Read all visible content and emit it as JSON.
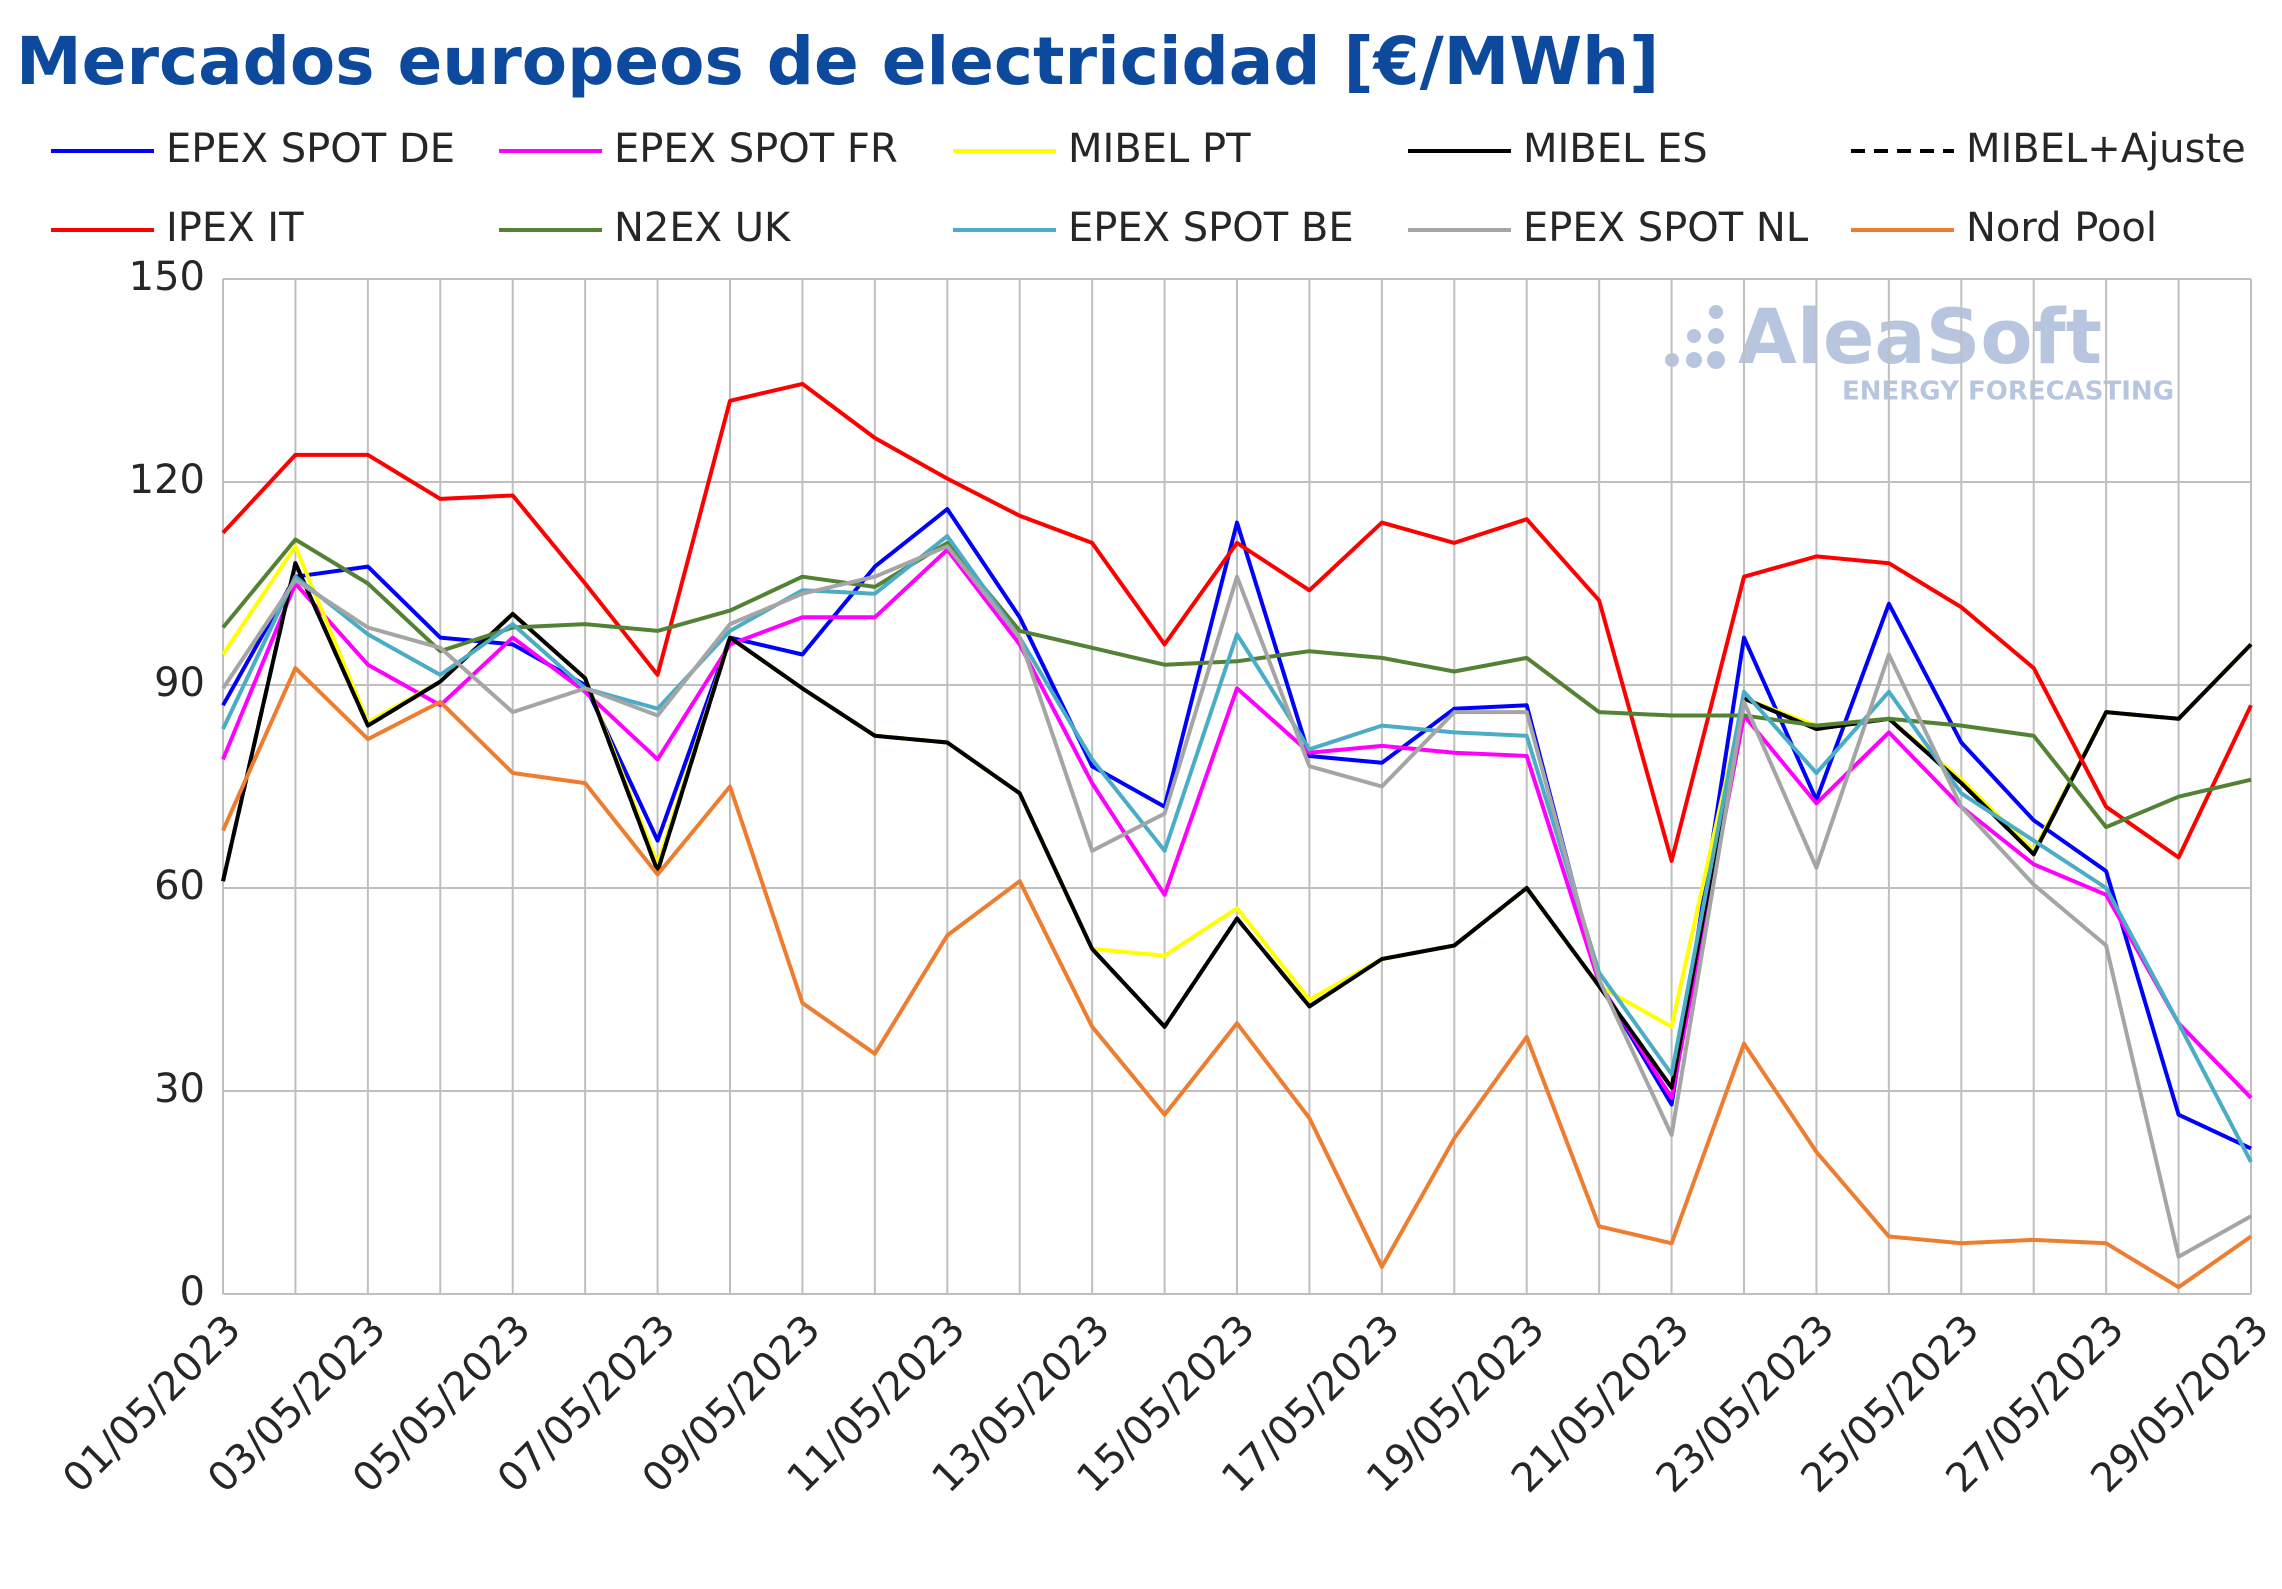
{
  "chart_data": {
    "type": "line",
    "title": "Mercados europeos de electricidad [€/MWh]",
    "watermark": {
      "brand": "AleaSoft",
      "tagline": "ENERGY FORECASTING"
    },
    "categories": [
      "01/05/2023",
      null,
      "03/05/2023",
      null,
      "05/05/2023",
      null,
      "07/05/2023",
      null,
      "09/05/2023",
      null,
      "11/05/2023",
      null,
      "13/05/2023",
      null,
      "15/05/2023",
      null,
      "17/05/2023",
      null,
      "19/05/2023",
      null,
      "21/05/2023",
      null,
      "23/05/2023",
      null,
      "25/05/2023",
      null,
      "27/05/2023",
      null,
      "29/05/2023"
    ],
    "ylim": [
      0,
      150
    ],
    "yticks": [
      0,
      30,
      60,
      90,
      120,
      150
    ],
    "grid": true,
    "series": [
      {
        "name": "EPEX SPOT DE",
        "color": "#0000ff",
        "values": [
          87,
          106,
          107.5,
          97,
          96,
          90,
          67,
          97,
          94.5,
          107.5,
          116,
          100,
          78,
          72,
          114,
          79.5,
          78.5,
          86.5,
          87,
          46,
          28,
          97,
          73,
          102,
          81.5,
          70,
          62.5,
          26.5,
          21.5
        ]
      },
      {
        "name": "EPEX SPOT FR",
        "color": "#ff00ff",
        "values": [
          79,
          105,
          93,
          87,
          97,
          89,
          79,
          96,
          100,
          100,
          110,
          96,
          75.5,
          59,
          89.5,
          80,
          81,
          80,
          79.5,
          46,
          29,
          85.5,
          72.5,
          83,
          72,
          63.5,
          59,
          40,
          29
        ]
      },
      {
        "name": "MIBEL PT",
        "color": "#ffff00",
        "values": [
          94.5,
          110.5,
          84.5,
          90.5,
          100.5,
          91,
          63.5,
          97,
          89.5,
          82.5,
          81.5,
          74,
          51,
          50,
          57,
          43.5,
          49.5,
          51.5,
          60,
          45.5,
          39.5,
          88,
          84,
          85,
          76,
          65.5,
          86,
          85,
          96
        ]
      },
      {
        "name": "MIBEL ES",
        "color": "#000000",
        "values": [
          61,
          108,
          84,
          90.5,
          100.5,
          91,
          62.5,
          97,
          89.5,
          82.5,
          81.5,
          74,
          51,
          39.5,
          55.5,
          42.5,
          49.5,
          51.5,
          60,
          45.5,
          30.5,
          88,
          83.5,
          85,
          75.5,
          65,
          86,
          85,
          96
        ]
      },
      {
        "name": "MIBEL+Ajuste",
        "color": "#000000",
        "dashed": true,
        "values": [
          61,
          108,
          84,
          90.5,
          100.5,
          91,
          62.5,
          97,
          89.5,
          82.5,
          81.5,
          74,
          51,
          39.5,
          55.5,
          42.5,
          49.5,
          51.5,
          60,
          45.5,
          30.5,
          88,
          83.5,
          85,
          75.5,
          65,
          86,
          85,
          96
        ]
      },
      {
        "name": "IPEX IT",
        "color": "#ff0000",
        "values": [
          112.5,
          124,
          124,
          117.5,
          118,
          105,
          91.5,
          132,
          134.5,
          126.5,
          120.5,
          115,
          111,
          96,
          111,
          104,
          114,
          111,
          114.5,
          102.5,
          64,
          106,
          109,
          108,
          101.5,
          92.5,
          72,
          64.5,
          87
        ]
      },
      {
        "name": "N2EX UK",
        "color": "#548235",
        "values": [
          98.5,
          111.5,
          105,
          95,
          98.5,
          99,
          98,
          101,
          106,
          104.5,
          111,
          98,
          95.5,
          93,
          93.5,
          95,
          94,
          92,
          94,
          86,
          85.5,
          85.5,
          84,
          85,
          84,
          82.5,
          69,
          73.5,
          76
        ]
      },
      {
        "name": "EPEX SPOT BE",
        "color": "#4bacc6",
        "values": [
          83.5,
          106,
          97.5,
          91.5,
          99,
          89.5,
          86.5,
          98,
          104,
          103.5,
          112,
          97,
          79,
          65.5,
          97.5,
          80.5,
          84,
          83,
          82.5,
          47.5,
          32.5,
          89,
          77,
          89,
          74,
          67,
          60,
          40,
          19.5
        ]
      },
      {
        "name": "EPEX SPOT NL",
        "color": "#a5a5a5",
        "values": [
          89.5,
          105.5,
          98.5,
          95.5,
          86,
          89.5,
          85.5,
          99,
          103.5,
          106,
          110.5,
          97,
          65.5,
          71,
          106,
          78,
          75,
          86,
          86,
          46.5,
          23.5,
          87.5,
          63,
          94.5,
          72,
          60.5,
          51.5,
          5.5,
          11.5
        ]
      },
      {
        "name": "Nord Pool",
        "color": "#ed7d31",
        "values": [
          68.5,
          92.5,
          82,
          87.5,
          77,
          75.5,
          62,
          75,
          43,
          35.5,
          53,
          61,
          39.5,
          26.5,
          40,
          26,
          4,
          23,
          38,
          10,
          7.5,
          37,
          21,
          8.5,
          7.5,
          8,
          7.5,
          1,
          8.5
        ]
      }
    ]
  }
}
